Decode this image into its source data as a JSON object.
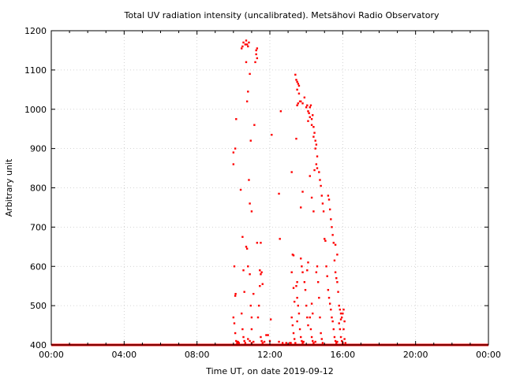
{
  "chart_data": {
    "type": "scatter",
    "title": "Total UV radiation intensity (uncalibrated). Metsähovi Radio Observatory",
    "xlabel": "Time UT, on date 2019-09-12",
    "ylabel": "Arbitrary unit",
    "xlim": [
      0,
      24
    ],
    "ylim": [
      400,
      1200
    ],
    "x_ticks": [
      0,
      4,
      8,
      12,
      16,
      20,
      24
    ],
    "x_tick_labels": [
      "00:00",
      "04:00",
      "08:00",
      "12:00",
      "16:00",
      "20:00",
      "00:00"
    ],
    "y_ticks": [
      400,
      500,
      600,
      700,
      800,
      900,
      1000,
      1100,
      1200
    ],
    "y_tick_labels": [
      "400",
      "500",
      "600",
      "700",
      "800",
      "900",
      "1000",
      "1100",
      "1200"
    ],
    "grid": true,
    "marker_color": "#ff0000",
    "baseline": {
      "y": 400,
      "x_range": [
        0,
        24
      ]
    },
    "series": [
      {
        "values": [
          [
            10.0,
            890
          ],
          [
            10.1,
            900
          ],
          [
            10.0,
            860
          ],
          [
            10.15,
            975
          ],
          [
            10.05,
            600
          ],
          [
            10.1,
            525
          ],
          [
            10.12,
            530
          ],
          [
            10.0,
            470
          ],
          [
            10.05,
            455
          ],
          [
            10.1,
            430
          ],
          [
            10.15,
            410
          ],
          [
            10.2,
            405
          ],
          [
            10.25,
            408
          ],
          [
            10.3,
            405
          ],
          [
            10.4,
            795
          ],
          [
            10.5,
            675
          ],
          [
            10.55,
            590
          ],
          [
            10.6,
            535
          ],
          [
            10.45,
            480
          ],
          [
            10.5,
            440
          ],
          [
            10.55,
            420
          ],
          [
            10.6,
            410
          ],
          [
            10.65,
            405
          ],
          [
            10.5,
            1160
          ],
          [
            10.45,
            1155
          ],
          [
            10.55,
            1170
          ],
          [
            10.65,
            1165
          ],
          [
            10.7,
            1175
          ],
          [
            10.75,
            1165
          ],
          [
            10.8,
            1160
          ],
          [
            10.85,
            1170
          ],
          [
            10.7,
            1120
          ],
          [
            10.75,
            1020
          ],
          [
            10.8,
            1045
          ],
          [
            10.9,
            1090
          ],
          [
            10.95,
            920
          ],
          [
            10.85,
            820
          ],
          [
            10.9,
            760
          ],
          [
            11.0,
            740
          ],
          [
            10.7,
            650
          ],
          [
            10.75,
            645
          ],
          [
            10.8,
            600
          ],
          [
            10.9,
            580
          ],
          [
            10.95,
            500
          ],
          [
            11.0,
            470
          ],
          [
            11.0,
            440
          ],
          [
            10.8,
            415
          ],
          [
            10.9,
            410
          ],
          [
            11.0,
            405
          ],
          [
            11.1,
            408
          ],
          [
            11.25,
            1150
          ],
          [
            11.3,
            1155
          ],
          [
            11.25,
            1140
          ],
          [
            11.3,
            1130
          ],
          [
            11.2,
            1120
          ],
          [
            11.15,
            960
          ],
          [
            11.1,
            530
          ],
          [
            11.3,
            660
          ],
          [
            11.5,
            660
          ],
          [
            11.45,
            590
          ],
          [
            11.5,
            580
          ],
          [
            11.55,
            585
          ],
          [
            11.6,
            555
          ],
          [
            11.45,
            550
          ],
          [
            11.4,
            500
          ],
          [
            11.35,
            470
          ],
          [
            11.5,
            420
          ],
          [
            11.55,
            410
          ],
          [
            11.6,
            405
          ],
          [
            11.7,
            408
          ],
          [
            11.8,
            425
          ],
          [
            11.9,
            425
          ],
          [
            12.0,
            410
          ],
          [
            12.05,
            465
          ],
          [
            12.1,
            935
          ],
          [
            12.5,
            785
          ],
          [
            12.55,
            670
          ],
          [
            12.6,
            995
          ],
          [
            12.5,
            408
          ],
          [
            12.7,
            405
          ],
          [
            12.9,
            405
          ],
          [
            13.1,
            405
          ],
          [
            13.2,
            840
          ],
          [
            13.25,
            630
          ],
          [
            13.3,
            628
          ],
          [
            13.2,
            585
          ],
          [
            13.3,
            545
          ],
          [
            13.35,
            510
          ],
          [
            13.2,
            470
          ],
          [
            13.25,
            450
          ],
          [
            13.3,
            430
          ],
          [
            13.35,
            415
          ],
          [
            13.4,
            405
          ],
          [
            13.15,
            405
          ],
          [
            13.4,
            1088
          ],
          [
            13.45,
            1075
          ],
          [
            13.5,
            1070
          ],
          [
            13.55,
            1065
          ],
          [
            13.6,
            1060
          ],
          [
            13.5,
            1050
          ],
          [
            13.6,
            1040
          ],
          [
            13.65,
            1020
          ],
          [
            13.5,
            1010
          ],
          [
            13.55,
            1015
          ],
          [
            13.7,
            1020
          ],
          [
            13.8,
            1015
          ],
          [
            13.45,
            925
          ],
          [
            13.8,
            790
          ],
          [
            13.7,
            750
          ],
          [
            13.5,
            560
          ],
          [
            13.45,
            550
          ],
          [
            13.5,
            520
          ],
          [
            13.55,
            500
          ],
          [
            13.6,
            480
          ],
          [
            13.5,
            460
          ],
          [
            13.65,
            440
          ],
          [
            13.7,
            420
          ],
          [
            13.75,
            410
          ],
          [
            13.8,
            405
          ],
          [
            13.85,
            408
          ],
          [
            13.7,
            620
          ],
          [
            13.75,
            600
          ],
          [
            13.8,
            585
          ],
          [
            13.9,
            560
          ],
          [
            13.95,
            540
          ],
          [
            14.0,
            500
          ],
          [
            14.05,
            470
          ],
          [
            14.1,
            450
          ],
          [
            13.9,
            1030
          ],
          [
            14.0,
            1005
          ],
          [
            14.05,
            1010
          ],
          [
            14.1,
            995
          ],
          [
            14.15,
            990
          ],
          [
            14.2,
            1005
          ],
          [
            14.25,
            1010
          ],
          [
            14.2,
            980
          ],
          [
            14.1,
            970
          ],
          [
            14.3,
            975
          ],
          [
            14.35,
            985
          ],
          [
            14.3,
            960
          ],
          [
            14.4,
            955
          ],
          [
            14.45,
            940
          ],
          [
            14.4,
            930
          ],
          [
            14.5,
            920
          ],
          [
            14.55,
            910
          ],
          [
            14.5,
            900
          ],
          [
            14.6,
            880
          ],
          [
            14.55,
            860
          ],
          [
            14.6,
            850
          ],
          [
            14.45,
            845
          ],
          [
            14.7,
            840
          ],
          [
            14.75,
            820
          ],
          [
            14.8,
            805
          ],
          [
            14.85,
            780
          ],
          [
            14.9,
            760
          ],
          [
            14.2,
            830
          ],
          [
            14.3,
            775
          ],
          [
            14.4,
            740
          ],
          [
            14.1,
            610
          ],
          [
            14.05,
            590
          ],
          [
            14.3,
            505
          ],
          [
            14.35,
            480
          ],
          [
            14.2,
            470
          ],
          [
            14.25,
            440
          ],
          [
            14.3,
            420
          ],
          [
            14.35,
            410
          ],
          [
            14.4,
            405
          ],
          [
            14.5,
            408
          ],
          [
            14.6,
            600
          ],
          [
            14.55,
            585
          ],
          [
            14.65,
            560
          ],
          [
            14.7,
            520
          ],
          [
            14.75,
            470
          ],
          [
            14.8,
            430
          ],
          [
            14.85,
            415
          ],
          [
            14.9,
            405
          ],
          [
            14.95,
            740
          ],
          [
            15.0,
            670
          ],
          [
            15.05,
            665
          ],
          [
            15.1,
            600
          ],
          [
            15.15,
            575
          ],
          [
            15.2,
            540
          ],
          [
            15.25,
            520
          ],
          [
            15.3,
            505
          ],
          [
            15.35,
            490
          ],
          [
            15.4,
            470
          ],
          [
            15.45,
            460
          ],
          [
            15.5,
            440
          ],
          [
            15.55,
            420
          ],
          [
            15.6,
            410
          ],
          [
            15.65,
            405
          ],
          [
            15.7,
            408
          ],
          [
            15.2,
            780
          ],
          [
            15.25,
            770
          ],
          [
            15.3,
            745
          ],
          [
            15.35,
            720
          ],
          [
            15.4,
            700
          ],
          [
            15.45,
            680
          ],
          [
            15.5,
            660
          ],
          [
            15.55,
            615
          ],
          [
            15.6,
            585
          ],
          [
            15.65,
            570
          ],
          [
            15.7,
            560
          ],
          [
            15.75,
            535
          ],
          [
            15.8,
            500
          ],
          [
            15.85,
            490
          ],
          [
            15.9,
            480
          ],
          [
            15.95,
            470
          ],
          [
            15.6,
            655
          ],
          [
            15.7,
            630
          ],
          [
            15.8,
            455
          ],
          [
            15.85,
            440
          ],
          [
            15.9,
            420
          ],
          [
            15.95,
            410
          ],
          [
            16.0,
            405
          ],
          [
            15.75,
            400
          ],
          [
            15.9,
            465
          ],
          [
            16.0,
            480
          ],
          [
            16.05,
            490
          ],
          [
            16.1,
            460
          ],
          [
            16.05,
            440
          ],
          [
            16.1,
            415
          ],
          [
            16.15,
            405
          ]
        ]
      }
    ]
  }
}
